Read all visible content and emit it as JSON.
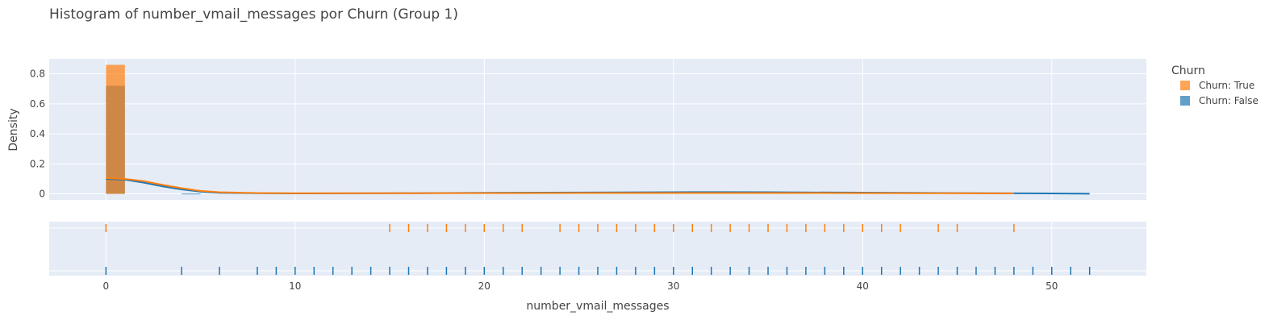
{
  "chart_data": {
    "type": "histogram",
    "title": "Histogram of number_vmail_messages por Churn (Group 1)",
    "xlabel": "number_vmail_messages",
    "ylabel": "Density",
    "xlim": [
      -3,
      55
    ],
    "ylim": [
      -0.04,
      0.9
    ],
    "x_ticks": [
      0,
      10,
      20,
      30,
      40,
      50
    ],
    "y_ticks": [
      0,
      0.2,
      0.4,
      0.6,
      0.8
    ],
    "bin_width": 1,
    "legend": {
      "title": "Churn",
      "position": "top-right"
    },
    "series": [
      {
        "name": "Churn: True",
        "color": "#ff7f0e",
        "bins": [
          {
            "x0": 0,
            "x1": 1,
            "density": 0.86
          }
        ],
        "kde": [
          [
            0,
            0.105
          ],
          [
            1,
            0.1
          ],
          [
            2,
            0.085
          ],
          [
            3,
            0.06
          ],
          [
            4,
            0.038
          ],
          [
            5,
            0.02
          ],
          [
            6,
            0.011
          ],
          [
            8,
            0.006
          ],
          [
            10,
            0.004
          ],
          [
            15,
            0.004
          ],
          [
            20,
            0.005
          ],
          [
            25,
            0.006
          ],
          [
            30,
            0.006
          ],
          [
            35,
            0.006
          ],
          [
            40,
            0.005
          ],
          [
            45,
            0.004
          ],
          [
            48,
            0.003
          ]
        ],
        "rug": [
          0,
          15,
          16,
          17,
          18,
          19,
          20,
          21,
          22,
          24,
          25,
          26,
          27,
          28,
          29,
          30,
          31,
          32,
          33,
          34,
          35,
          36,
          37,
          38,
          39,
          40,
          41,
          42,
          44,
          45,
          48
        ]
      },
      {
        "name": "Churn: False",
        "color": "#1f77b4",
        "bins": [
          {
            "x0": 0,
            "x1": 1,
            "density": 0.72
          },
          {
            "x0": 4,
            "x1": 5,
            "density": 0.002
          }
        ],
        "kde": [
          [
            0,
            0.1
          ],
          [
            1,
            0.095
          ],
          [
            2,
            0.075
          ],
          [
            3,
            0.05
          ],
          [
            4,
            0.03
          ],
          [
            5,
            0.015
          ],
          [
            6,
            0.007
          ],
          [
            8,
            0.004
          ],
          [
            10,
            0.003
          ],
          [
            15,
            0.004
          ],
          [
            20,
            0.007
          ],
          [
            25,
            0.009
          ],
          [
            30,
            0.011
          ],
          [
            31,
            0.012
          ],
          [
            35,
            0.011
          ],
          [
            40,
            0.008
          ],
          [
            45,
            0.005
          ],
          [
            50,
            0.003
          ],
          [
            52,
            0.001
          ]
        ],
        "rug": [
          0,
          4,
          6,
          8,
          9,
          10,
          11,
          12,
          13,
          14,
          15,
          16,
          17,
          18,
          19,
          20,
          21,
          22,
          23,
          24,
          25,
          26,
          27,
          28,
          29,
          30,
          31,
          32,
          33,
          34,
          35,
          36,
          37,
          38,
          39,
          40,
          41,
          42,
          43,
          44,
          45,
          46,
          47,
          48,
          49,
          50,
          51,
          52
        ]
      }
    ]
  }
}
